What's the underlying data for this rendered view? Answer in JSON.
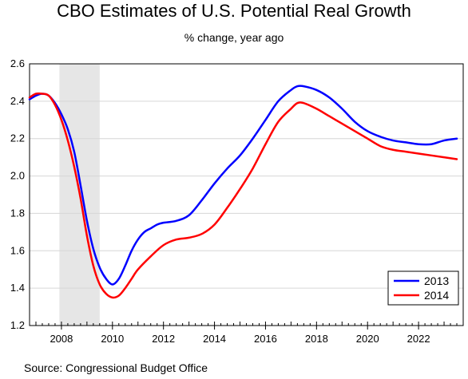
{
  "chart_data": {
    "type": "line",
    "title": "CBO Estimates of U.S. Potential Real Growth",
    "subtitle": "% change, year ago",
    "source": "Source: Congressional Budget Office",
    "xlabel": "",
    "ylabel": "",
    "xlim": [
      2006.75,
      2023.75
    ],
    "ylim": [
      1.2,
      2.6
    ],
    "x_ticks": [
      2008,
      2010,
      2012,
      2014,
      2016,
      2018,
      2020,
      2022
    ],
    "y_ticks": [
      "1.2",
      "1.4",
      "1.6",
      "1.8",
      "2.0",
      "2.2",
      "2.4",
      "2.6"
    ],
    "grid": "horizontal",
    "legend_position": "bottom-right",
    "recession_shading": [
      2007.92,
      2009.5
    ],
    "series": [
      {
        "name": "2013",
        "color": "#0000ff",
        "points": [
          [
            2006.75,
            2.41
          ],
          [
            2007.0,
            2.43
          ],
          [
            2007.25,
            2.44
          ],
          [
            2007.5,
            2.43
          ],
          [
            2007.75,
            2.39
          ],
          [
            2008.0,
            2.33
          ],
          [
            2008.25,
            2.25
          ],
          [
            2008.5,
            2.13
          ],
          [
            2008.75,
            1.95
          ],
          [
            2009.0,
            1.76
          ],
          [
            2009.25,
            1.61
          ],
          [
            2009.5,
            1.51
          ],
          [
            2009.75,
            1.45
          ],
          [
            2010.0,
            1.42
          ],
          [
            2010.25,
            1.45
          ],
          [
            2010.5,
            1.52
          ],
          [
            2010.75,
            1.6
          ],
          [
            2011.0,
            1.66
          ],
          [
            2011.25,
            1.7
          ],
          [
            2011.5,
            1.72
          ],
          [
            2011.75,
            1.74
          ],
          [
            2012.0,
            1.75
          ],
          [
            2012.5,
            1.76
          ],
          [
            2013.0,
            1.79
          ],
          [
            2013.5,
            1.87
          ],
          [
            2014.0,
            1.96
          ],
          [
            2014.5,
            2.04
          ],
          [
            2015.0,
            2.11
          ],
          [
            2015.5,
            2.2
          ],
          [
            2016.0,
            2.3
          ],
          [
            2016.5,
            2.4
          ],
          [
            2017.0,
            2.46
          ],
          [
            2017.25,
            2.48
          ],
          [
            2017.5,
            2.48
          ],
          [
            2018.0,
            2.46
          ],
          [
            2018.5,
            2.42
          ],
          [
            2019.0,
            2.36
          ],
          [
            2019.5,
            2.29
          ],
          [
            2020.0,
            2.24
          ],
          [
            2020.5,
            2.21
          ],
          [
            2021.0,
            2.19
          ],
          [
            2021.5,
            2.18
          ],
          [
            2022.0,
            2.17
          ],
          [
            2022.5,
            2.17
          ],
          [
            2023.0,
            2.19
          ],
          [
            2023.5,
            2.2
          ]
        ]
      },
      {
        "name": "2014",
        "color": "#ff0000",
        "points": [
          [
            2006.75,
            2.42
          ],
          [
            2007.0,
            2.44
          ],
          [
            2007.25,
            2.44
          ],
          [
            2007.5,
            2.43
          ],
          [
            2007.75,
            2.38
          ],
          [
            2008.0,
            2.3
          ],
          [
            2008.25,
            2.19
          ],
          [
            2008.5,
            2.05
          ],
          [
            2008.75,
            1.88
          ],
          [
            2009.0,
            1.68
          ],
          [
            2009.25,
            1.52
          ],
          [
            2009.5,
            1.42
          ],
          [
            2009.75,
            1.37
          ],
          [
            2010.0,
            1.35
          ],
          [
            2010.25,
            1.36
          ],
          [
            2010.5,
            1.4
          ],
          [
            2010.75,
            1.45
          ],
          [
            2011.0,
            1.5
          ],
          [
            2011.5,
            1.57
          ],
          [
            2012.0,
            1.63
          ],
          [
            2012.5,
            1.66
          ],
          [
            2013.0,
            1.67
          ],
          [
            2013.5,
            1.69
          ],
          [
            2014.0,
            1.74
          ],
          [
            2014.5,
            1.83
          ],
          [
            2015.0,
            1.93
          ],
          [
            2015.5,
            2.04
          ],
          [
            2016.0,
            2.17
          ],
          [
            2016.5,
            2.29
          ],
          [
            2017.0,
            2.36
          ],
          [
            2017.25,
            2.39
          ],
          [
            2017.5,
            2.39
          ],
          [
            2018.0,
            2.36
          ],
          [
            2018.5,
            2.32
          ],
          [
            2019.0,
            2.28
          ],
          [
            2019.5,
            2.24
          ],
          [
            2020.0,
            2.2
          ],
          [
            2020.5,
            2.16
          ],
          [
            2021.0,
            2.14
          ],
          [
            2021.5,
            2.13
          ],
          [
            2022.0,
            2.12
          ],
          [
            2022.5,
            2.11
          ],
          [
            2023.0,
            2.1
          ],
          [
            2023.5,
            2.09
          ]
        ]
      }
    ]
  }
}
